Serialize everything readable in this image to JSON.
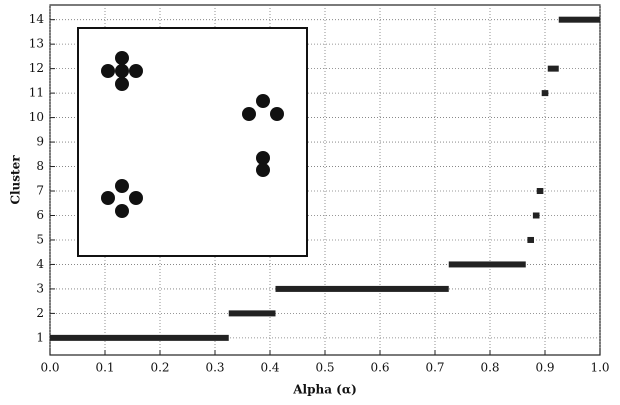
{
  "chart_data": {
    "type": "segments",
    "xlabel": "Alpha (α)",
    "ylabel": "Cluster",
    "color": "#222222",
    "grid": true,
    "segments": [
      {
        "cluster": 1,
        "start": 0.0,
        "end": 0.325
      },
      {
        "cluster": 2,
        "start": 0.325,
        "end": 0.41
      },
      {
        "cluster": 3,
        "start": 0.41,
        "end": 0.725
      },
      {
        "cluster": 4,
        "start": 0.725,
        "end": 0.865
      },
      {
        "cluster": 5,
        "start": 0.868,
        "end": 0.88
      },
      {
        "cluster": 6,
        "start": 0.878,
        "end": 0.89
      },
      {
        "cluster": 7,
        "start": 0.885,
        "end": 0.897
      },
      {
        "cluster": 11,
        "start": 0.894,
        "end": 0.906
      },
      {
        "cluster": 12,
        "start": 0.905,
        "end": 0.925
      },
      {
        "cluster": 14,
        "start": 0.925,
        "end": 1.0
      }
    ],
    "xlim": [
      0,
      1
    ],
    "ylim": [
      0.3,
      14.6
    ],
    "xticks": [
      {
        "value": 0,
        "label": "0.0"
      },
      0.1,
      0.2,
      0.3,
      0.4,
      0.5,
      0.6,
      0.7,
      0.8,
      0.9,
      {
        "value": 1,
        "label": "1.0"
      }
    ],
    "yticks": [
      1,
      2,
      3,
      4,
      5,
      6,
      7,
      8,
      9,
      10,
      11,
      12,
      13,
      14
    ]
  }
}
